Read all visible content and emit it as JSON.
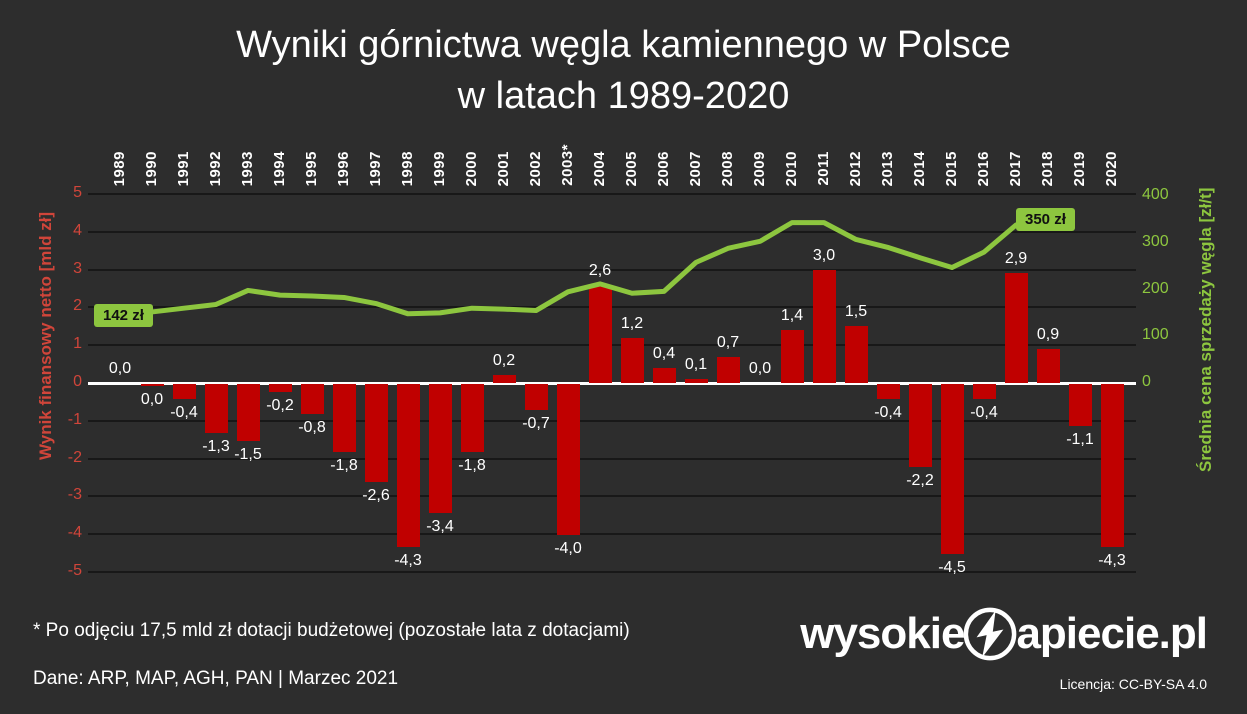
{
  "title": {
    "line1": "Wyniki górnictwa węgla kamiennego w Polsce",
    "line2": "w latach 1989-2020"
  },
  "axes": {
    "left_title": "Wynik finansowy netto [mld zł]",
    "right_title": "Średnia cena sprzedaży węgla [zł/t]",
    "left_ticks": [
      "5",
      "4",
      "3",
      "2",
      "1",
      "0",
      "-1",
      "-2",
      "-3",
      "-4",
      "-5"
    ],
    "right_ticks": [
      "400",
      "300",
      "200",
      "100",
      "0"
    ]
  },
  "annotations": {
    "price_start": "142 zł",
    "price_end": "350 zł"
  },
  "chart_data": {
    "type": "bar",
    "title": "Wyniki górnictwa węgla kamiennego w Polsce w latach 1989-2020",
    "ylabel": "Wynik finansowy netto [mld zł]",
    "y2label": "Średnia cena sprzedaży węgla [zł/t]",
    "ylim": [
      -5,
      5
    ],
    "y2lim": [
      0,
      400
    ],
    "grid": true,
    "categories": [
      "1989",
      "1990",
      "1991",
      "1992",
      "1993",
      "1994",
      "1995",
      "1996",
      "1997",
      "1998",
      "1999",
      "2000",
      "2001",
      "2002",
      "2003*",
      "2004",
      "2005",
      "2006",
      "2007",
      "2008",
      "2009",
      "2010",
      "2011",
      "2012",
      "2013",
      "2014",
      "2015",
      "2016",
      "2017",
      "2018",
      "2019",
      "2020"
    ],
    "series": [
      {
        "name": "Wynik finansowy netto [mld zł]",
        "type": "bar",
        "color": "#c00000",
        "values": [
          0,
          -0.05,
          -0.4,
          -1.3,
          -1.5,
          -0.2,
          -0.8,
          -1.8,
          -2.6,
          -4.3,
          -3.4,
          -1.8,
          0.2,
          -0.7,
          -4.0,
          2.6,
          1.2,
          0.4,
          0.1,
          0.7,
          0,
          1.4,
          3.0,
          1.5,
          -0.4,
          -2.2,
          -4.5,
          -0.4,
          2.9,
          0.9,
          -1.1,
          -4.3
        ],
        "labels": [
          "0,0",
          "0,0",
          "-0,4",
          "-1,3",
          "-1,5",
          "-0,2",
          "-0,8",
          "-1,8",
          "-2,6",
          "-4,3",
          "-3,4",
          "-1,8",
          "0,2",
          "-0,7",
          "-4,0",
          "2,6",
          "1,2",
          "0,4",
          "0,1",
          "0,7",
          "0,0",
          "1,4",
          "3,0",
          "1,5",
          "-0,4",
          "-2,2",
          "-4,5",
          "-0,4",
          "2,9",
          "0,9",
          "-1,1",
          "-4,3"
        ]
      },
      {
        "name": "Średnia cena sprzedaży węgla [zł/t]",
        "type": "line",
        "color": "#8dc63f",
        "values": [
          142,
          152,
          160,
          168,
          198,
          188,
          186,
          183,
          170,
          148,
          150,
          160,
          158,
          155,
          195,
          212,
          192,
          196,
          258,
          288,
          303,
          343,
          343,
          307,
          290,
          268,
          247,
          280,
          338,
          350,
          null,
          null
        ]
      }
    ]
  },
  "footer": {
    "footnote": "* Po odjęciu 17,5 mld zł dotacji budżetowej (pozostałe lata z dotacjami)",
    "source": "Dane: ARP, MAP, AGH, PAN   |   Marzec 2021",
    "license": "Licencja: CC-BY-SA 4.0"
  },
  "logo": {
    "prefix": "wysokie",
    "suffix": "apiecie.pl"
  },
  "colors": {
    "background": "#2d2d2d",
    "bar": "#c00000",
    "line": "#8dc63f",
    "left_axis": "#d0453a",
    "right_axis": "#8dc63f",
    "text": "#ffffff",
    "gridline": "#181818",
    "zero_line": "#ffffff",
    "label_bg": "#8dc63f"
  }
}
